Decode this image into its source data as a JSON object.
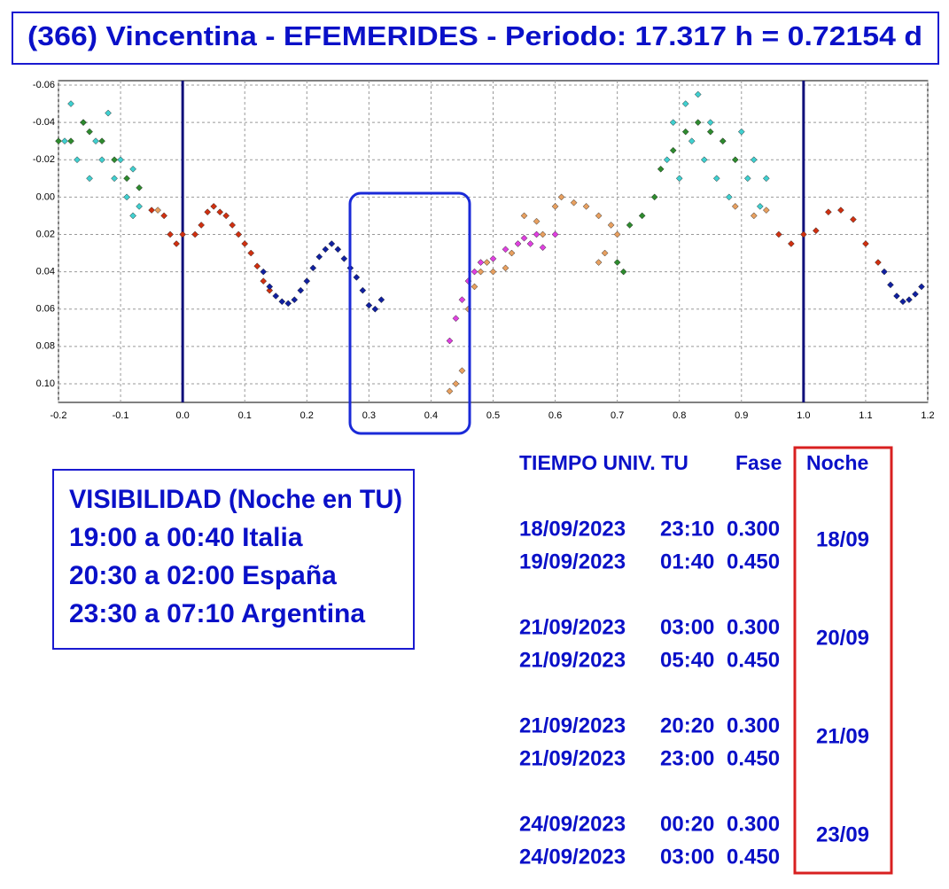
{
  "title": "(366) Vincentina - EFEMERIDES - Periodo: 17.317 h = 0.72154 d",
  "chart_data": {
    "type": "scatter",
    "xlim": [
      -0.2,
      1.2
    ],
    "xticks": [
      -0.2,
      -0.1,
      {
        "value": 0,
        "label": "0.0"
      },
      0.1,
      0.2,
      0.3,
      0.4,
      0.5,
      0.6,
      0.7,
      0.8,
      0.9,
      {
        "value": 1,
        "label": "1.0"
      },
      1.1,
      1.2
    ],
    "ylim": [
      0.11,
      -0.06
    ],
    "yticks": [
      -0.06,
      -0.04,
      -0.02,
      {
        "value": 0,
        "label": "0.00"
      },
      0.02,
      0.04,
      0.06,
      0.08,
      {
        "value": 0.1,
        "label": "0.10"
      }
    ],
    "grid": true,
    "vlines": [
      0,
      1
    ],
    "series": [
      {
        "color": "#40d0d0",
        "x": [
          -0.19,
          -0.18,
          -0.17,
          -0.16,
          -0.15,
          -0.14,
          -0.13,
          -0.12,
          -0.11,
          -0.1,
          -0.09,
          -0.08,
          -0.07,
          -0.08,
          0.78,
          0.79,
          0.8,
          0.81,
          0.82,
          0.83,
          0.84,
          0.85,
          0.86,
          0.87,
          0.88,
          0.89,
          0.9,
          0.91,
          0.92,
          0.93,
          0.94
        ],
        "values": [
          -0.03,
          -0.05,
          -0.02,
          -0.04,
          -0.01,
          -0.03,
          -0.02,
          -0.045,
          -0.01,
          -0.02,
          0.0,
          -0.015,
          0.005,
          0.01,
          -0.02,
          -0.04,
          -0.01,
          -0.05,
          -0.03,
          -0.055,
          -0.02,
          -0.04,
          -0.01,
          -0.03,
          0.0,
          -0.02,
          -0.035,
          -0.01,
          -0.02,
          0.005,
          -0.01
        ]
      },
      {
        "color": "#2e8b2e",
        "x": [
          -0.2,
          -0.18,
          -0.16,
          -0.15,
          -0.13,
          -0.11,
          -0.09,
          -0.07,
          0.72,
          0.74,
          0.76,
          0.77,
          0.79,
          0.81,
          0.83,
          0.85,
          0.87,
          0.89,
          0.7,
          0.71
        ],
        "values": [
          -0.03,
          -0.03,
          -0.04,
          -0.035,
          -0.03,
          -0.02,
          -0.01,
          -0.005,
          0.015,
          0.01,
          0.0,
          -0.015,
          -0.025,
          -0.035,
          -0.04,
          -0.035,
          -0.03,
          -0.02,
          0.035,
          0.04
        ]
      },
      {
        "color": "#d03010",
        "x": [
          -0.05,
          -0.03,
          -0.02,
          -0.01,
          0.0,
          0.02,
          0.03,
          0.04,
          0.05,
          0.06,
          0.07,
          0.08,
          0.09,
          0.1,
          0.11,
          0.12,
          0.13,
          0.14,
          0.96,
          0.98,
          1.0,
          1.02,
          1.04,
          1.06,
          1.08,
          1.1,
          1.12
        ],
        "values": [
          0.007,
          0.01,
          0.02,
          0.025,
          0.02,
          0.02,
          0.015,
          0.008,
          0.005,
          0.008,
          0.01,
          0.015,
          0.02,
          0.025,
          0.03,
          0.037,
          0.045,
          0.05,
          0.02,
          0.025,
          0.02,
          0.018,
          0.008,
          0.007,
          0.012,
          0.025,
          0.035
        ]
      },
      {
        "color": "#1020a0",
        "x": [
          0.13,
          0.14,
          0.15,
          0.16,
          0.17,
          0.18,
          0.19,
          0.2,
          0.21,
          0.22,
          0.23,
          0.24,
          0.25,
          0.26,
          0.27,
          0.28,
          0.29,
          0.3,
          0.31,
          0.32,
          1.13,
          1.14,
          1.15,
          1.16,
          1.17,
          1.18,
          1.19
        ],
        "values": [
          0.04,
          0.048,
          0.053,
          0.056,
          0.057,
          0.055,
          0.05,
          0.045,
          0.038,
          0.032,
          0.028,
          0.025,
          0.028,
          0.033,
          0.038,
          0.043,
          0.05,
          0.058,
          0.06,
          0.055,
          0.04,
          0.047,
          0.053,
          0.056,
          0.055,
          0.052,
          0.048
        ]
      },
      {
        "color": "#e040e0",
        "x": [
          0.43,
          0.44,
          0.45,
          0.46,
          0.47,
          0.48,
          0.5,
          0.52,
          0.54,
          0.55,
          0.56,
          0.57,
          0.58,
          0.6
        ],
        "values": [
          0.077,
          0.065,
          0.055,
          0.045,
          0.04,
          0.035,
          0.033,
          0.028,
          0.025,
          0.022,
          0.025,
          0.02,
          0.027,
          0.02
        ]
      },
      {
        "color": "#e8a060",
        "x": [
          0.43,
          0.44,
          0.45,
          0.46,
          0.47,
          0.48,
          0.49,
          0.5,
          0.52,
          0.53,
          0.55,
          0.57,
          0.58,
          0.6,
          0.61,
          0.63,
          0.65,
          0.67,
          0.69,
          0.7,
          0.68,
          0.67,
          -0.04,
          0.89,
          0.92,
          0.94
        ],
        "values": [
          0.104,
          0.1,
          0.093,
          0.06,
          0.048,
          0.04,
          0.035,
          0.04,
          0.038,
          0.03,
          0.01,
          0.013,
          0.02,
          0.005,
          0.0,
          0.003,
          0.005,
          0.01,
          0.015,
          0.02,
          0.03,
          0.035,
          0.007,
          0.005,
          0.01,
          0.007
        ]
      }
    ]
  },
  "visibility": {
    "title": "VISIBILIDAD (Noche en TU)",
    "lines": [
      "19:00 a 00:40 Italia",
      "20:30 a 02:00 España",
      "23:30 a 07:10 Argentina"
    ]
  },
  "ephemerides": {
    "headers": [
      "TIEMPO UNIV. TU",
      "Fase",
      "Noche"
    ],
    "nights": [
      {
        "night": "18/09",
        "rows": [
          {
            "date": "18/09/2023",
            "time": "23:10",
            "phase": "0.300"
          },
          {
            "date": "19/09/2023",
            "time": "01:40",
            "phase": "0.450"
          }
        ]
      },
      {
        "night": "20/09",
        "rows": [
          {
            "date": "21/09/2023",
            "time": "03:00",
            "phase": "0.300"
          },
          {
            "date": "21/09/2023",
            "time": "05:40",
            "phase": "0.450"
          }
        ]
      },
      {
        "night": "21/09",
        "rows": [
          {
            "date": "21/09/2023",
            "time": "20:20",
            "phase": "0.300"
          },
          {
            "date": "21/09/2023",
            "time": "23:00",
            "phase": "0.450"
          }
        ]
      },
      {
        "night": "23/09",
        "rows": [
          {
            "date": "24/09/2023",
            "time": "00:20",
            "phase": "0.300"
          },
          {
            "date": "24/09/2023",
            "time": "03:00",
            "phase": "0.450"
          }
        ]
      }
    ]
  }
}
